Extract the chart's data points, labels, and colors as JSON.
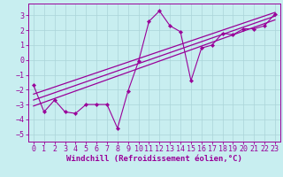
{
  "title": "",
  "xlabel": "Windchill (Refroidissement éolien,°C)",
  "ylabel": "",
  "bg_color": "#c8eef0",
  "grid_color": "#aad4d8",
  "line_color": "#990099",
  "xlim": [
    -0.5,
    23.5
  ],
  "ylim": [
    -5.5,
    3.8
  ],
  "xticks": [
    0,
    1,
    2,
    3,
    4,
    5,
    6,
    7,
    8,
    9,
    10,
    11,
    12,
    13,
    14,
    15,
    16,
    17,
    18,
    19,
    20,
    21,
    22,
    23
  ],
  "yticks": [
    -5,
    -4,
    -3,
    -2,
    -1,
    0,
    1,
    2,
    3
  ],
  "scatter_x": [
    0,
    1,
    2,
    3,
    4,
    5,
    6,
    7,
    8,
    9,
    10,
    11,
    12,
    13,
    14,
    15,
    16,
    17,
    18,
    19,
    20,
    21,
    22,
    23
  ],
  "scatter_y": [
    -1.7,
    -3.5,
    -2.7,
    -3.5,
    -3.6,
    -3.0,
    -3.0,
    -3.0,
    -4.6,
    -2.1,
    -0.1,
    2.6,
    3.3,
    2.3,
    1.9,
    -1.4,
    0.8,
    1.0,
    1.8,
    1.7,
    2.1,
    2.1,
    2.3,
    3.1
  ],
  "reg_lines": [
    {
      "x0": 0,
      "y0": -3.1,
      "x1": 23,
      "y1": 2.7
    },
    {
      "x0": 0,
      "y0": -2.7,
      "x1": 23,
      "y1": 2.95
    },
    {
      "x0": 0,
      "y0": -2.3,
      "x1": 23,
      "y1": 3.2
    }
  ],
  "xlabel_fontsize": 6.5,
  "tick_fontsize": 6.0
}
